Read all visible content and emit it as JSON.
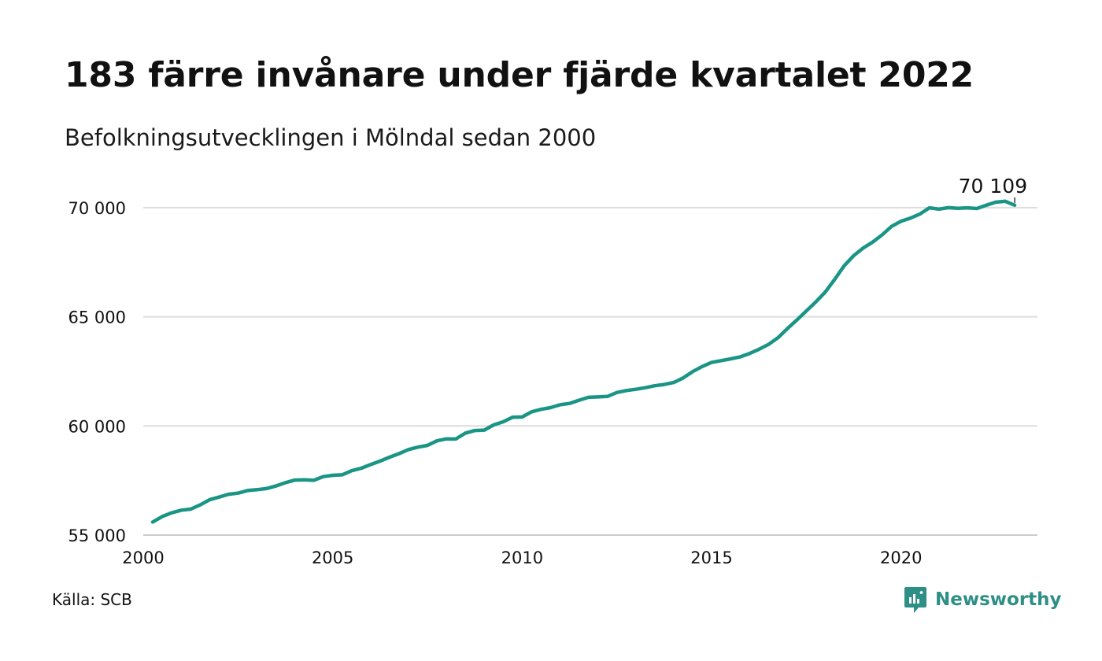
{
  "header": {
    "title": "183 färre invånare under fjärde kvartalet 2022",
    "subtitle": "Befolkningsutvecklingen i Mölndal sedan 2000"
  },
  "footer": {
    "source": "Källa: SCB",
    "brand": "Newsworthy",
    "brand_icon": "newsworthy-logo-icon",
    "brand_color": "#2e8f86"
  },
  "chart_data": {
    "type": "line",
    "title": "183 färre invånare under fjärde kvartalet 2022",
    "subtitle": "Befolkningsutvecklingen i Mölndal sedan 2000",
    "xlim": [
      2000,
      2023.6
    ],
    "ylim": [
      55000,
      70500
    ],
    "xticks": [
      2000,
      2005,
      2010,
      2015,
      2020
    ],
    "xtick_labels": [
      "2000",
      "2005",
      "2010",
      "2015",
      "2020"
    ],
    "yticks": [
      55000,
      60000,
      65000,
      70000
    ],
    "ytick_labels": [
      "55 000",
      "60 000",
      "65 000",
      "70 000"
    ],
    "grid": "horizontal",
    "line_color": "#1a9585",
    "grid_color": "#dddddd",
    "end_label": "70 109",
    "series": [
      {
        "x": [
          2000.25,
          2000.5,
          2000.75,
          2001.0,
          2001.25,
          2001.5,
          2001.75,
          2002.0,
          2002.25,
          2002.5,
          2002.75,
          2003.0,
          2003.25,
          2003.5,
          2003.75,
          2004.0,
          2004.25,
          2004.5,
          2004.75,
          2005.0,
          2005.25,
          2005.5,
          2005.75,
          2006.0,
          2006.25,
          2006.5,
          2006.75,
          2007.0,
          2007.25,
          2007.5,
          2007.75,
          2008.0,
          2008.25,
          2008.5,
          2008.75,
          2009.0,
          2009.25,
          2009.5,
          2009.75,
          2010.0,
          2010.25,
          2010.5,
          2010.75,
          2011.0,
          2011.25,
          2011.5,
          2011.75,
          2012.0,
          2012.25,
          2012.5,
          2012.75,
          2013.0,
          2013.25,
          2013.5,
          2013.75,
          2014.0,
          2014.25,
          2014.5,
          2014.75,
          2015.0,
          2015.25,
          2015.5,
          2015.75,
          2016.0,
          2016.25,
          2016.5,
          2016.75,
          2017.0,
          2017.25,
          2017.5,
          2017.75,
          2018.0,
          2018.25,
          2018.5,
          2018.75,
          2019.0,
          2019.25,
          2019.5,
          2019.75,
          2020.0,
          2020.25,
          2020.5,
          2020.75,
          2021.0,
          2021.25,
          2021.5,
          2021.75,
          2022.0,
          2022.25,
          2022.5,
          2022.75,
          2023.0
        ],
        "y": [
          55600,
          55850,
          56020,
          56140,
          56190,
          56380,
          56620,
          56740,
          56870,
          56920,
          57040,
          57080,
          57130,
          57250,
          57400,
          57520,
          57530,
          57510,
          57680,
          57740,
          57760,
          57950,
          58060,
          58230,
          58390,
          58570,
          58730,
          58920,
          59030,
          59110,
          59320,
          59410,
          59400,
          59670,
          59790,
          59810,
          60050,
          60190,
          60400,
          60410,
          60650,
          60760,
          60840,
          60970,
          61030,
          61180,
          61310,
          61330,
          61350,
          61530,
          61620,
          61680,
          61750,
          61840,
          61900,
          61990,
          62200,
          62490,
          62720,
          62910,
          62990,
          63070,
          63160,
          63320,
          63510,
          63730,
          64040,
          64460,
          64850,
          65270,
          65680,
          66130,
          66720,
          67340,
          67800,
          68150,
          68420,
          68750,
          69140,
          69380,
          69520,
          69710,
          69990,
          69930,
          70000,
          69970,
          69990,
          69960,
          70110,
          70250,
          70290,
          70109
        ]
      }
    ]
  }
}
